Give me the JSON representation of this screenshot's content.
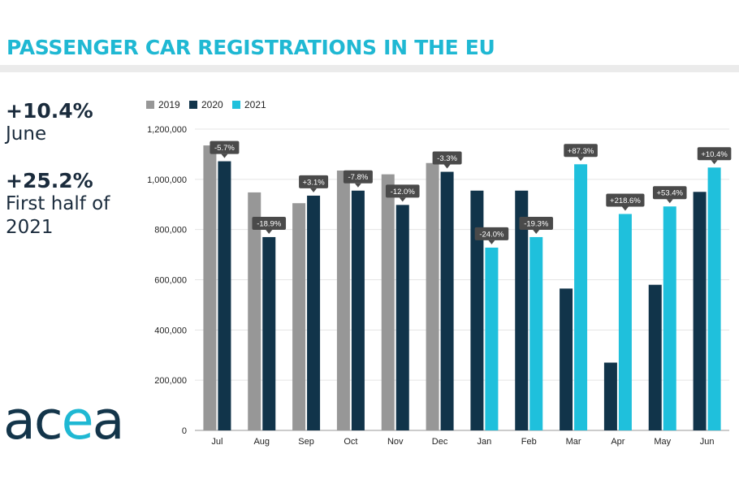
{
  "title": "PASSENGER CAR REGISTRATIONS IN THE EU",
  "stats": [
    {
      "value": "+10.4%",
      "label": "June"
    },
    {
      "value": "+25.2%",
      "label": "First half of 2021"
    }
  ],
  "logo": {
    "prefix": "ac",
    "accent": "e",
    "suffix": "a"
  },
  "colors": {
    "y2019": "#979797",
    "y2020": "#11344a",
    "y2021": "#1fc0dc",
    "title": "#1fb8d3",
    "bubble": "#4a4a4a"
  },
  "chart_data": {
    "type": "bar",
    "categories": [
      "Jul",
      "Aug",
      "Sep",
      "Oct",
      "Nov",
      "Dec",
      "Jan",
      "Feb",
      "Mar",
      "Apr",
      "May",
      "Jun"
    ],
    "series": [
      {
        "name": "2019",
        "values": [
          1135000,
          948000,
          905000,
          1035000,
          1020000,
          1065000,
          null,
          null,
          null,
          null,
          null,
          null
        ]
      },
      {
        "name": "2020",
        "values": [
          1072000,
          770000,
          935000,
          955000,
          898000,
          1030000,
          955000,
          955000,
          565000,
          270000,
          580000,
          950000
        ]
      },
      {
        "name": "2021",
        "values": [
          null,
          null,
          null,
          null,
          null,
          null,
          728000,
          770000,
          1060000,
          862000,
          892000,
          1047000
        ]
      }
    ],
    "change_labels": [
      "-5.7%",
      "-18.9%",
      "+3.1%",
      "-7.8%",
      "-12.0%",
      "-3.3%",
      "-24.0%",
      "-19.3%",
      "+87.3%",
      "+218.6%",
      "+53.4%",
      "+10.4%"
    ],
    "yticks": [
      "0",
      "200,000",
      "400,000",
      "600,000",
      "800,000",
      "1,000,000",
      "1,200,000"
    ],
    "ylim": [
      0,
      1200000
    ],
    "grid": true,
    "legend_position": "top-left"
  }
}
